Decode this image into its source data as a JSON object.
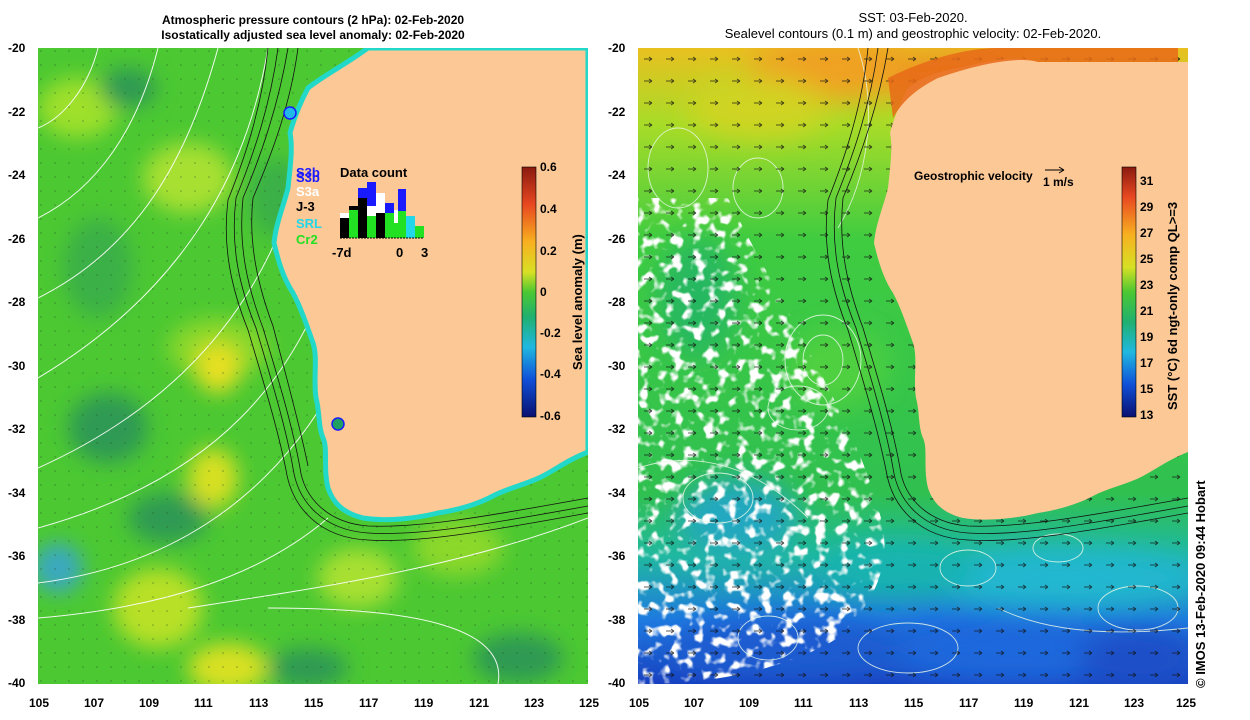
{
  "left_panel": {
    "title_line1": "Atmospheric pressure contours (2 hPa): 02-Feb-2020",
    "title_line2": "Isostatically adjusted sea level anomaly: 02-Feb-2020",
    "colorbar_label": "Sea level anomaly (m)",
    "colorbar_ticks": [
      "0.6",
      "0.4",
      "0.2",
      "0",
      "-0.2",
      "-0.4",
      "-0.6"
    ],
    "legend": {
      "title": "Data count",
      "items": [
        {
          "label": "S3b",
          "color": "#1a1aff"
        },
        {
          "label": "S3a",
          "color": "#ffffff"
        },
        {
          "label": "J-3",
          "color": "#000000"
        },
        {
          "label": "SRL",
          "color": "#22d8e8"
        },
        {
          "label": "Cr2",
          "color": "#22e022"
        }
      ],
      "overlay_label": "S3b",
      "axis_labels": [
        "-7d",
        "0",
        "3"
      ]
    }
  },
  "right_panel": {
    "title_line1": "SST: 03-Feb-2020.",
    "title_line2": "Sealevel contours (0.1 m) and geostrophic velocity: 02-Feb-2020.",
    "velocity_label": "Geostrophic velocity",
    "velocity_scale": "1 m/s",
    "colorbar_label": "SST (°C) 6d ngt-only comp QL>=3",
    "colorbar_ticks": [
      "31",
      "29",
      "27",
      "25",
      "23",
      "21",
      "19",
      "17",
      "15",
      "13"
    ]
  },
  "axes": {
    "lat_ticks": [
      "-20",
      "-22",
      "-24",
      "-26",
      "-28",
      "-30",
      "-32",
      "-34",
      "-36",
      "-38",
      "-40"
    ],
    "lon_ticks": [
      "105",
      "107",
      "109",
      "111",
      "113",
      "115",
      "117",
      "119",
      "121",
      "123",
      "125"
    ]
  },
  "credit": "© IMOS 13-Feb-2020 09:44 Hobart",
  "colors": {
    "land": "#fcc896",
    "sla_green": "#4cc832",
    "sst_green": "#3ccc3c",
    "sst_blue": "#1e6adc"
  }
}
